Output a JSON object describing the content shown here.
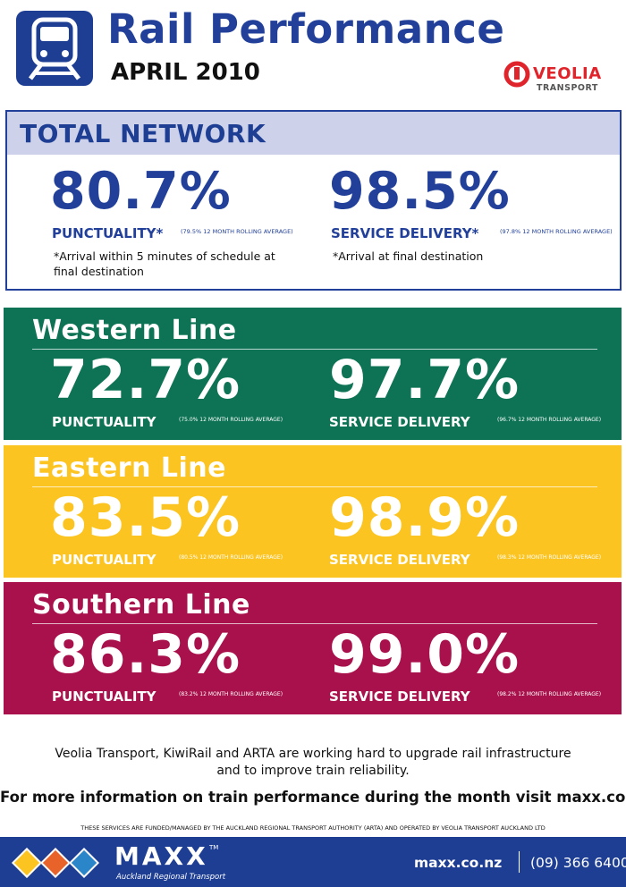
{
  "header": {
    "title": "Rail Performance",
    "subtitle": "APRIL 2010",
    "operator_name": "VEOLIA",
    "operator_sub": "TRANSPORT"
  },
  "total_network": {
    "heading": "TOTAL NETWORK",
    "punctuality": {
      "value": "80.7%",
      "label": "PUNCTUALITY*",
      "rolling": "(79.5% 12 MONTH ROLLING AVERAGE)",
      "note": "*Arrival within 5 minutes of schedule at final destination"
    },
    "service_delivery": {
      "value": "98.5%",
      "label": "SERVICE DELIVERY*",
      "rolling": "(97.8% 12 MONTH ROLLING AVERAGE)",
      "note": "*Arrival at final destination"
    }
  },
  "lines": {
    "western": {
      "name": "Western Line",
      "punctuality": {
        "value": "72.7%",
        "label": "PUNCTUALITY",
        "rolling": "(75.0% 12 MONTH ROLLING AVERAGE)"
      },
      "service_delivery": {
        "value": "97.7%",
        "label": "SERVICE DELIVERY",
        "rolling": "(96.7% 12 MONTH ROLLING AVERAGE)"
      }
    },
    "eastern": {
      "name": "Eastern Line",
      "punctuality": {
        "value": "83.5%",
        "label": "PUNCTUALITY",
        "rolling": "(80.5% 12 MONTH ROLLING AVERAGE)"
      },
      "service_delivery": {
        "value": "98.9%",
        "label": "SERVICE DELIVERY",
        "rolling": "(98.3% 12 MONTH ROLLING AVERAGE)"
      }
    },
    "southern": {
      "name": "Southern Line",
      "punctuality": {
        "value": "86.3%",
        "label": "PUNCTUALITY",
        "rolling": "(83.2% 12 MONTH ROLLING AVERAGE)"
      },
      "service_delivery": {
        "value": "99.0%",
        "label": "SERVICE DELIVERY",
        "rolling": "(98.2% 12 MONTH ROLLING AVERAGE)"
      }
    }
  },
  "footer": {
    "message_line1": "Veolia Transport, KiwiRail and ARTA are working hard to upgrade rail infrastructure",
    "message_line2": "and to improve train reliability.",
    "more_info": "For more information on train performance during the month visit maxx.co.nz",
    "funded": "THESE SERVICES ARE FUNDED/MANAGED BY THE AUCKLAND REGIONAL TRANSPORT AUTHORITY (ARTA) AND OPERATED BY VEOLIA TRANSPORT AUCKLAND LTD"
  },
  "bottom_bar": {
    "brand": "MAXX",
    "trademark": "TM",
    "brand_sub": "Auckland Regional Transport",
    "website": "maxx.co.nz",
    "phone": "(09) 366 6400"
  },
  "colors": {
    "brand_blue": "#22409a",
    "western": "#0d7354",
    "eastern": "#fcc421",
    "southern": "#a8114b",
    "veolia_red": "#e0242b"
  },
  "icons": [
    "train-icon",
    "veolia-logo-icon",
    "bus-icon",
    "train-icon",
    "ferry-icon"
  ]
}
